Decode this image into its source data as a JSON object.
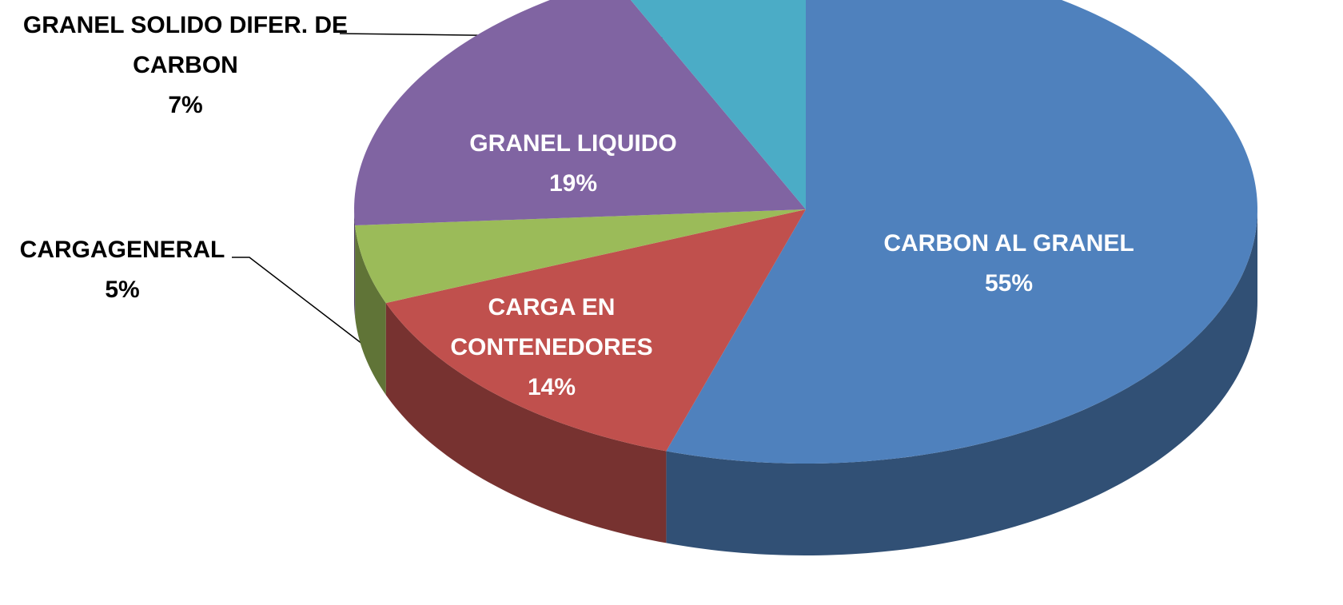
{
  "chart_data": {
    "type": "pie3d",
    "categories": [
      "CARBON AL GRANEL",
      "CARGA EN CONTENEDORES",
      "CARGAGENERAL",
      "GRANEL LIQUIDO",
      "GRANEL SOLIDO DIFER. DE CARBON"
    ],
    "values": [
      55,
      14,
      5,
      19,
      7
    ],
    "value_labels": [
      "55%",
      "14%",
      "5%",
      "19%",
      "7%"
    ],
    "colors": [
      "#4f81bd",
      "#c0504d",
      "#9bbb59",
      "#8064a2",
      "#4bacc6"
    ]
  }
}
